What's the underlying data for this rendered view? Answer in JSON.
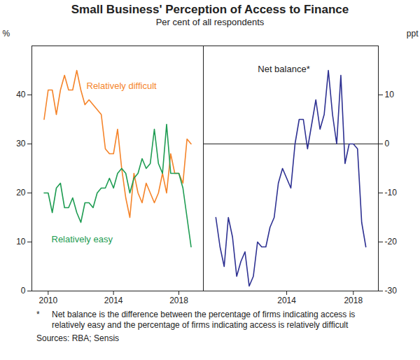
{
  "title": "Small Business' Perception of Access to Finance",
  "subtitle": "Per cent of all respondents",
  "note_marker": "*",
  "note": "Net balance is the difference between the percentage of firms indicating access is relatively easy and the percentage of firms indicating access is relatively difficult",
  "source": "Sources: RBA; Sensis",
  "chart_data": [
    {
      "type": "line",
      "ylabel": "%",
      "x": [
        2009.75,
        2010,
        2010.25,
        2010.5,
        2010.75,
        2011,
        2011.25,
        2011.5,
        2011.75,
        2012,
        2012.25,
        2012.5,
        2012.75,
        2013,
        2013.25,
        2013.5,
        2013.75,
        2014,
        2014.25,
        2014.5,
        2014.75,
        2015,
        2015.25,
        2015.5,
        2015.75,
        2016,
        2016.25,
        2016.5,
        2016.75,
        2017,
        2017.25,
        2017.5,
        2017.75,
        2018,
        2018.25,
        2018.5,
        2018.75
      ],
      "xlim": [
        2009,
        2019.5
      ],
      "xticks": [
        2010,
        2014,
        2018
      ],
      "ylim": [
        0,
        50
      ],
      "yticks": [
        0,
        10,
        20,
        30,
        40
      ],
      "grid": false,
      "series": [
        {
          "name": "Relatively difficult",
          "color": "#f5842a",
          "values": [
            35,
            41,
            41,
            36,
            41,
            44,
            41,
            41,
            45,
            41,
            38,
            39,
            38,
            37,
            36,
            29,
            28,
            28,
            33,
            25,
            19,
            15,
            24,
            20,
            18,
            22,
            20,
            18,
            20,
            24,
            20,
            28,
            24,
            24,
            22,
            31,
            30
          ]
        },
        {
          "name": "Relatively easy",
          "color": "#1e9c52",
          "values": [
            20,
            20,
            16,
            21,
            22,
            17,
            17,
            19,
            16,
            14,
            18,
            18,
            17,
            20,
            21,
            21,
            23,
            21,
            24,
            25,
            24,
            20,
            23,
            24,
            27,
            25,
            26,
            33,
            26,
            24,
            34,
            24,
            24,
            24,
            21,
            15,
            9
          ]
        }
      ]
    },
    {
      "type": "line",
      "ylabel": "ppt",
      "x": [
        2009.75,
        2010,
        2010.25,
        2010.5,
        2010.75,
        2011,
        2011.25,
        2011.5,
        2011.75,
        2012,
        2012.25,
        2012.5,
        2012.75,
        2013,
        2013.25,
        2013.5,
        2013.75,
        2014,
        2014.25,
        2014.5,
        2014.75,
        2015,
        2015.25,
        2015.5,
        2015.75,
        2016,
        2016.25,
        2016.5,
        2016.75,
        2017,
        2017.25,
        2017.5,
        2017.75,
        2018,
        2018.25,
        2018.5,
        2018.75
      ],
      "xlim": [
        2009,
        2019.5
      ],
      "xticks": [
        2014,
        2018
      ],
      "ylim": [
        -30,
        20
      ],
      "yticks": [
        -30,
        -20,
        -10,
        0,
        10
      ],
      "grid": false,
      "series": [
        {
          "name": "Net balance*",
          "color": "#2e3192",
          "values": [
            -15,
            -21,
            -25,
            -15,
            -19,
            -27,
            -24,
            -22,
            -29,
            -27,
            -20,
            -21,
            -21,
            -17,
            -15,
            -8,
            -5,
            -7,
            -9,
            0,
            5,
            5,
            -1,
            4,
            9,
            3,
            6,
            15,
            6,
            0,
            14,
            -4,
            0,
            0,
            -1,
            -16,
            -21
          ]
        }
      ]
    }
  ]
}
